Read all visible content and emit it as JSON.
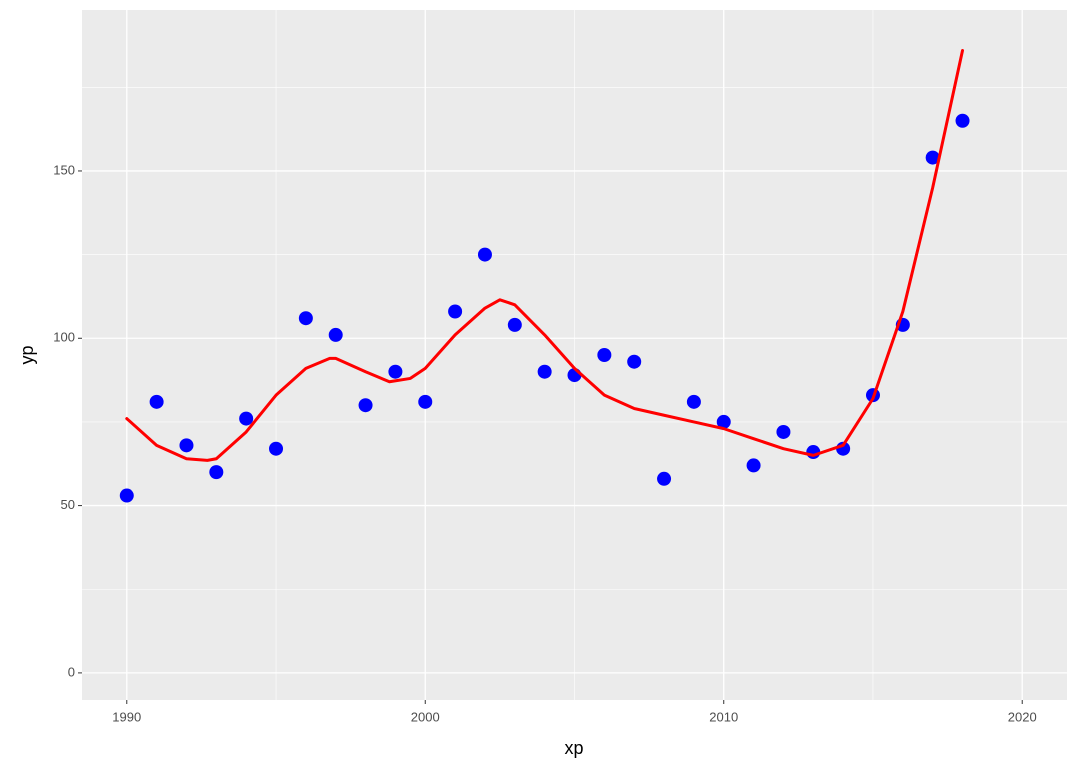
{
  "chart_data": {
    "type": "scatter",
    "x_label": "xp",
    "y_label": "yp",
    "x": [
      1990,
      1991,
      1992,
      1993,
      1994,
      1995,
      1996,
      1997,
      1998,
      1999,
      2000,
      2001,
      2002,
      2003,
      2004,
      2005,
      2006,
      2007,
      2008,
      2009,
      2010,
      2011,
      2012,
      2013,
      2014,
      2015,
      2016,
      2017,
      2018
    ],
    "values": [
      53,
      81,
      68,
      60,
      76,
      67,
      106,
      101,
      80,
      90,
      81,
      108,
      125,
      104,
      90,
      89,
      95,
      93,
      58,
      81,
      75,
      62,
      72,
      66,
      67,
      83,
      104,
      154,
      165
    ],
    "color": "#0000ff",
    "smooth": {
      "type": "line",
      "color": "#ff0000",
      "x": [
        1990,
        1991,
        1992,
        1992.7,
        1993,
        1994,
        1995,
        1996,
        1996.8,
        1997,
        1998,
        1998.8,
        1999.5,
        2000,
        2001,
        2002,
        2002.5,
        2003,
        2004,
        2005,
        2006,
        2007,
        2008,
        2009,
        2010,
        2011,
        2012,
        2013,
        2014,
        2015,
        2016,
        2017,
        2018
      ],
      "values": [
        76,
        68,
        64,
        63.5,
        64,
        72,
        83,
        91,
        94,
        94,
        90,
        87,
        88,
        91,
        101,
        109,
        111.5,
        110,
        101,
        91,
        83,
        79,
        77,
        75,
        73,
        70,
        67,
        65,
        68,
        82,
        108,
        145,
        186
      ]
    },
    "xlim": [
      1988.5,
      2021.5
    ],
    "ylim": [
      -8.1,
      198.1
    ],
    "xticks": [
      1990,
      2000,
      2010,
      2020
    ],
    "yticks": [
      0,
      50,
      100,
      150
    ],
    "grid": true
  }
}
